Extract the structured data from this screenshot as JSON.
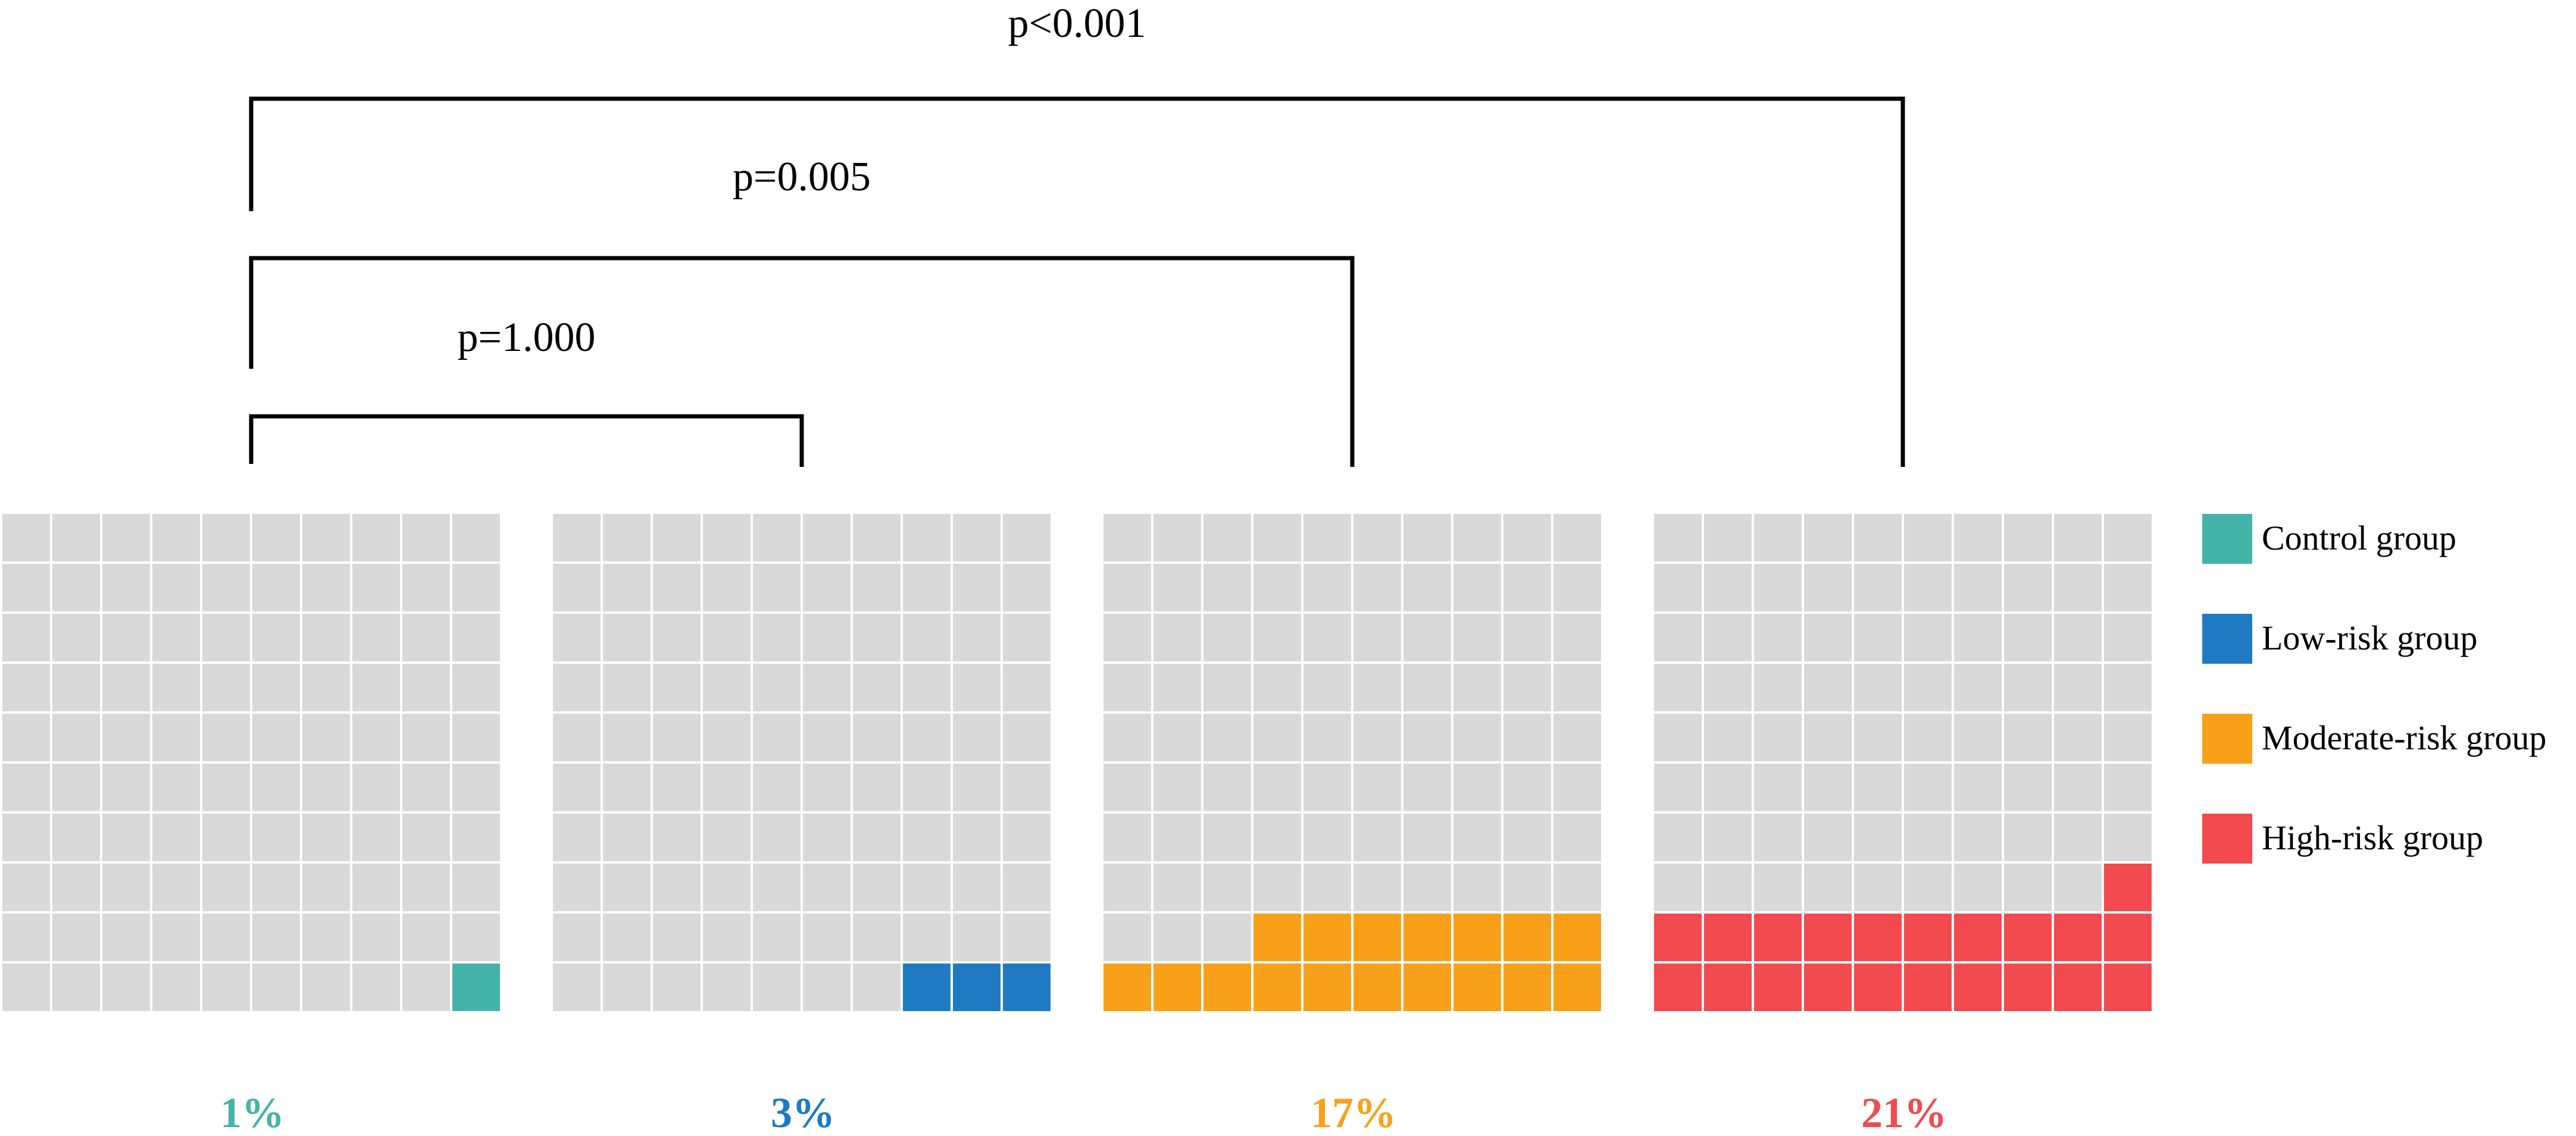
{
  "chart_data": {
    "type": "waffle",
    "grid": "10x10",
    "panels": [
      {
        "percent": 1,
        "label": "1%",
        "color": "#45b4a8",
        "legend": "Control group"
      },
      {
        "percent": 3,
        "label": "3%",
        "color": "#1f7ac2",
        "legend": "Low-risk group"
      },
      {
        "percent": 17,
        "label": "17%",
        "color": "#f9a01a",
        "legend": "Moderate-risk group"
      },
      {
        "percent": 21,
        "label": "21%",
        "color": "#f24a4e",
        "legend": "High-risk group"
      }
    ],
    "empty_color": "#d9d9d9",
    "comparisons": [
      {
        "from": "Control group",
        "to": "Low-risk group",
        "p": "p=1.000"
      },
      {
        "from": "Control group",
        "to": "Moderate-risk group",
        "p": "p=0.005"
      },
      {
        "from": "Control group",
        "to": "High-risk group",
        "p": "p<0.001"
      }
    ],
    "legend_position": "right"
  }
}
